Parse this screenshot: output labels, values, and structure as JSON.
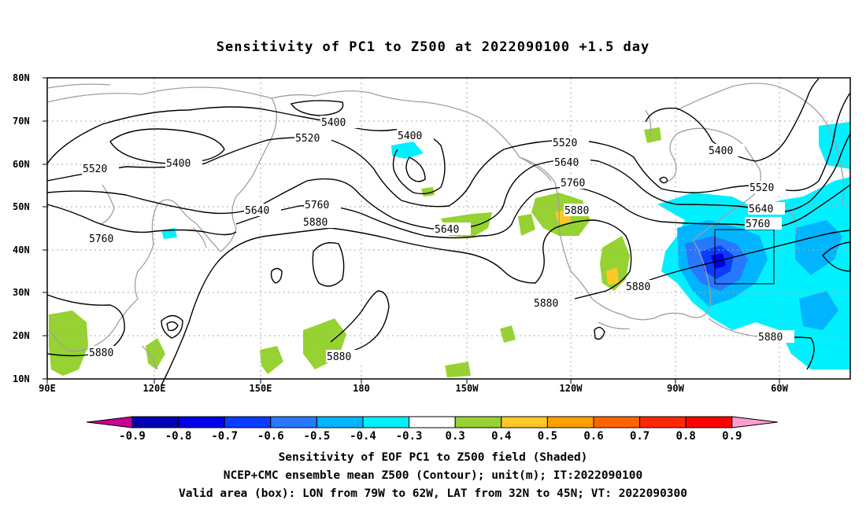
{
  "title": "Sensitivity of PC1 to Z500 at 2022090100 +1.5 day",
  "map": {
    "lat_labels": [
      "80N",
      "70N",
      "60N",
      "50N",
      "40N",
      "30N",
      "20N",
      "10N"
    ],
    "lon_labels": [
      "90E",
      "120E",
      "150E",
      "180",
      "150W",
      "120W",
      "90W",
      "60W"
    ],
    "contour_labels": {
      "c5400": "5400",
      "c5520": "5520",
      "c5640": "5640",
      "c5760": "5760",
      "c5880": "5880"
    },
    "valid_box": {
      "lon_from": "79W",
      "lon_to": "62W",
      "lat_from": "32N",
      "lat_to": "45N"
    }
  },
  "colorbar": {
    "labels": [
      "-0.9",
      "-0.8",
      "-0.7",
      "-0.6",
      "-0.5",
      "-0.4",
      "-0.3",
      "0.3",
      "0.4",
      "0.5",
      "0.6",
      "0.7",
      "0.8",
      "0.9"
    ],
    "colors": [
      "#c80096",
      "#0000b4",
      "#0000e6",
      "#0a3cff",
      "#2878ff",
      "#00b4ff",
      "#00f0ff",
      "#ffffff",
      "#96d232",
      "#ffc828",
      "#ffa000",
      "#ff6400",
      "#ff2800",
      "#ff0000",
      "#ff9ed2"
    ]
  },
  "footer": {
    "line1": "Sensitivity of EOF PC1 to Z500 field (Shaded)",
    "line2": "NCEP+CMC ensemble mean Z500 (Contour); unit(m); IT:2022090100",
    "line3": "Valid area (box): LON from 79W to 62W, LAT from 32N to 45N; VT: 2022090300"
  }
}
